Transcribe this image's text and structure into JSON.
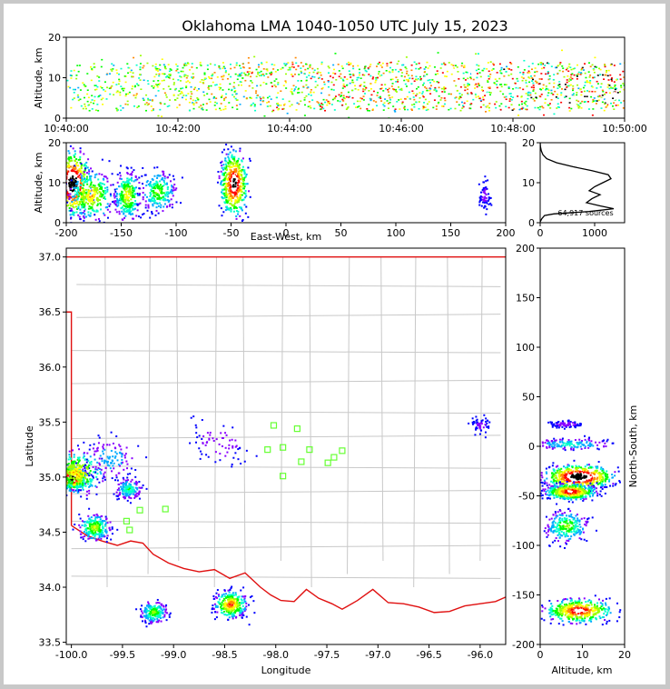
{
  "title": "Oklahoma LMA 1040-1050 UTC July 15, 2023",
  "colors": {
    "state_border": "#e01010",
    "county_lines": "#c8c8c8",
    "stations": "#66ff33",
    "window_bg": "#c8c8c8"
  },
  "chart_data": [
    {
      "id": "time-height",
      "type": "heatmap",
      "xlabel": "",
      "ylabel": "Altitude, km",
      "x_ticks": [
        "10:40:00",
        "10:42:00",
        "10:44:00",
        "10:46:00",
        "10:48:00",
        "10:50:00"
      ],
      "y_ticks": [
        0,
        10,
        20
      ],
      "ylim": [
        0,
        20
      ],
      "altitude_band_km": [
        2,
        14
      ]
    },
    {
      "id": "ew-height",
      "type": "heatmap",
      "xlabel": "East-West, km",
      "ylabel": "Altitude, km",
      "xlim": [
        -200,
        200
      ],
      "ylim": [
        0,
        20
      ],
      "x_ticks": [
        -200,
        -150,
        -100,
        -50,
        0,
        50,
        100,
        150,
        200
      ],
      "y_ticks": [
        0,
        10,
        20
      ],
      "clusters": [
        {
          "x": -195,
          "y": 10,
          "sx": 8,
          "sy": 4,
          "w": 1.0
        },
        {
          "x": -178,
          "y": 7,
          "sx": 10,
          "sy": 3,
          "w": 0.6
        },
        {
          "x": -145,
          "y": 7,
          "sx": 6,
          "sy": 3,
          "w": 0.55
        },
        {
          "x": -117,
          "y": 8,
          "sx": 8,
          "sy": 2.5,
          "w": 0.45
        },
        {
          "x": -48,
          "y": 10,
          "sx": 6,
          "sy": 4,
          "w": 0.9
        },
        {
          "x": 180,
          "y": 7,
          "sx": 3,
          "sy": 2,
          "w": 0.12
        }
      ]
    },
    {
      "id": "altitude-histogram",
      "type": "line",
      "annotation": "64,917 sources",
      "xlim": [
        0,
        1550
      ],
      "ylim": [
        0,
        20
      ],
      "x_ticks": [
        0,
        1000
      ],
      "y_ticks": [
        0,
        10,
        20
      ],
      "points": [
        [
          0,
          0.2
        ],
        [
          30,
          1
        ],
        [
          80,
          1.8
        ],
        [
          250,
          2.2
        ],
        [
          900,
          2.8
        ],
        [
          1350,
          3.5
        ],
        [
          1100,
          4.2
        ],
        [
          850,
          5
        ],
        [
          950,
          6
        ],
        [
          1100,
          7
        ],
        [
          900,
          8
        ],
        [
          1000,
          9
        ],
        [
          1150,
          10
        ],
        [
          1300,
          11
        ],
        [
          1250,
          12
        ],
        [
          950,
          13
        ],
        [
          600,
          14
        ],
        [
          300,
          15
        ],
        [
          120,
          16
        ],
        [
          50,
          17
        ],
        [
          20,
          18
        ],
        [
          5,
          19
        ],
        [
          0,
          20
        ]
      ]
    },
    {
      "id": "map",
      "type": "scatter",
      "xlabel": "Longitude",
      "ylabel": "Latitude",
      "xlim": [
        -100.05,
        -95.75
      ],
      "ylim": [
        33.48,
        37.08
      ],
      "x_ticks": [
        -100.0,
        -99.5,
        -99.0,
        -98.5,
        -98.0,
        -97.5,
        -97.0,
        -96.5,
        -96.0
      ],
      "y_ticks": [
        33.5,
        34.0,
        34.5,
        35.0,
        35.5,
        36.0,
        36.5,
        37.0
      ],
      "stations": [
        [
          -98.02,
          35.47
        ],
        [
          -97.79,
          35.44
        ],
        [
          -98.08,
          35.25
        ],
        [
          -97.93,
          35.27
        ],
        [
          -97.67,
          35.25
        ],
        [
          -97.35,
          35.24
        ],
        [
          -97.75,
          35.14
        ],
        [
          -97.49,
          35.13
        ],
        [
          -97.43,
          35.18
        ],
        [
          -97.93,
          35.01
        ],
        [
          -99.33,
          34.7
        ],
        [
          -99.08,
          34.71
        ],
        [
          -99.46,
          34.6
        ],
        [
          -99.43,
          34.52
        ]
      ],
      "clusters": [
        {
          "lon": -100.0,
          "lat": 35.0,
          "s": 0.05,
          "w": 1.0
        },
        {
          "lon": -99.95,
          "lat": 35.05,
          "s": 0.1,
          "w": 0.6
        },
        {
          "lon": -99.78,
          "lat": 34.55,
          "s": 0.06,
          "w": 0.5
        },
        {
          "lon": -99.45,
          "lat": 34.9,
          "s": 0.05,
          "w": 0.35
        },
        {
          "lon": -99.62,
          "lat": 35.18,
          "s": 0.1,
          "w": 0.25
        },
        {
          "lon": -98.45,
          "lat": 33.85,
          "s": 0.06,
          "w": 0.7
        },
        {
          "lon": -99.2,
          "lat": 33.78,
          "s": 0.05,
          "w": 0.45
        },
        {
          "lon": -98.55,
          "lat": 35.32,
          "s": 0.12,
          "w": 0.15
        },
        {
          "lon": -96.0,
          "lat": 35.48,
          "s": 0.04,
          "w": 0.12
        }
      ]
    },
    {
      "id": "ns-height",
      "type": "heatmap",
      "xlabel": "Altitude, km",
      "ylabel": "North-South, km",
      "xlim": [
        0,
        20
      ],
      "ylim": [
        -200,
        200
      ],
      "x_ticks": [
        0,
        10,
        20
      ],
      "y_ticks": [
        -200,
        -150,
        -100,
        -50,
        0,
        50,
        100,
        150,
        200
      ],
      "clusters": [
        {
          "x": 9,
          "y": -30,
          "sx": 4,
          "sy": 6,
          "w": 1.0
        },
        {
          "x": 7,
          "y": -45,
          "sx": 3,
          "sy": 4,
          "w": 0.8
        },
        {
          "x": 9,
          "y": -165,
          "sx": 4,
          "sy": 6,
          "w": 0.8
        },
        {
          "x": 6,
          "y": -80,
          "sx": 2.5,
          "sy": 8,
          "w": 0.45
        },
        {
          "x": 7,
          "y": 3,
          "sx": 5,
          "sy": 3,
          "w": 0.3
        },
        {
          "x": 6,
          "y": 23,
          "sx": 2,
          "sy": 2,
          "w": 0.15
        }
      ]
    }
  ]
}
